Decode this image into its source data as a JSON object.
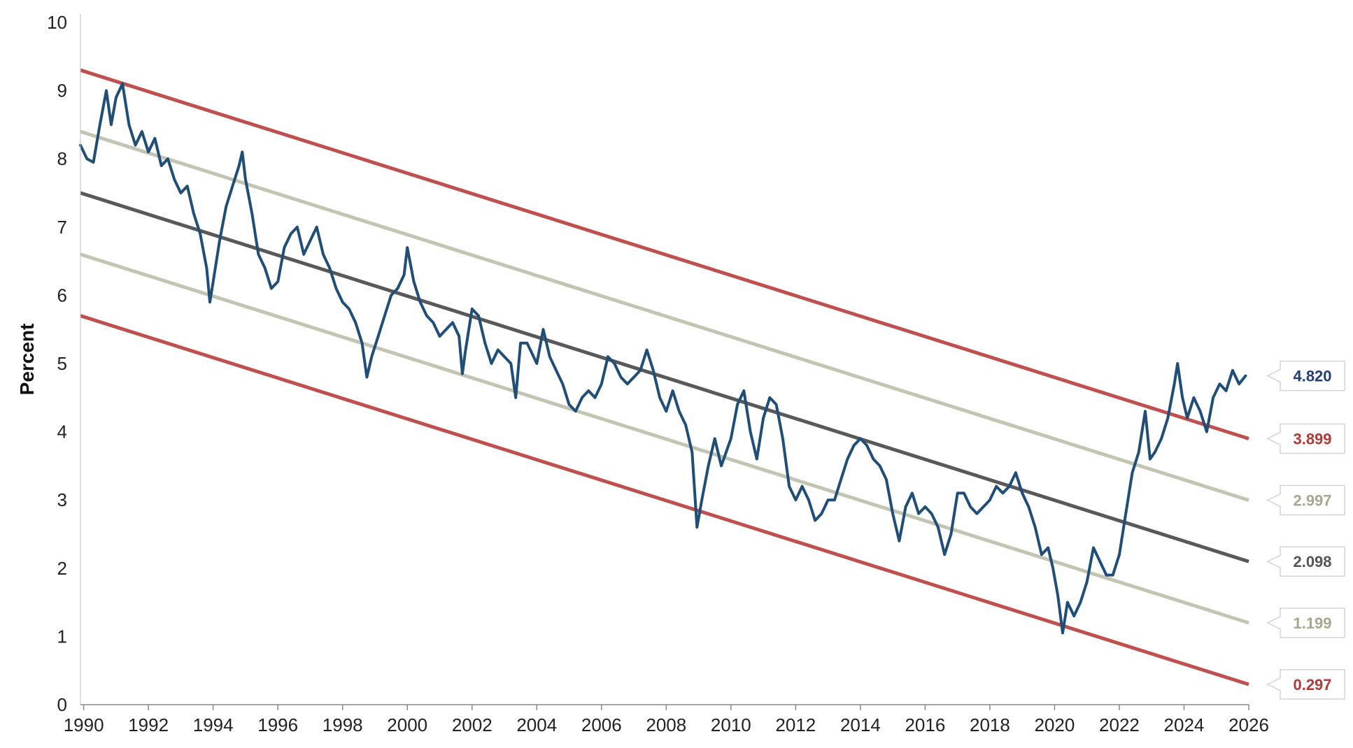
{
  "chart_data": {
    "type": "line",
    "title": "",
    "xlabel": "",
    "ylabel": "Percent",
    "xlim": [
      1989.9,
      2026.0
    ],
    "ylim": [
      0,
      10
    ],
    "x_ticks": [
      "1990",
      "1992",
      "1994",
      "1996",
      "1998",
      "2000",
      "2002",
      "2004",
      "2006",
      "2008",
      "2010",
      "2012",
      "2014",
      "2016",
      "2018",
      "2020",
      "2022",
      "2024",
      "2026"
    ],
    "y_ticks": [
      "0",
      "1",
      "2",
      "3",
      "4",
      "5",
      "6",
      "7",
      "8",
      "9",
      "10"
    ],
    "grid": false,
    "legend": "none",
    "series": [
      {
        "color": "#1f4e79",
        "points": [
          [
            1989.9,
            8.2
          ],
          [
            1990.1,
            8.0
          ],
          [
            1990.3,
            7.95
          ],
          [
            1990.5,
            8.5
          ],
          [
            1990.7,
            9.0
          ],
          [
            1990.85,
            8.5
          ],
          [
            1991.0,
            8.9
          ],
          [
            1991.2,
            9.1
          ],
          [
            1991.4,
            8.5
          ],
          [
            1991.6,
            8.2
          ],
          [
            1991.8,
            8.4
          ],
          [
            1992.0,
            8.1
          ],
          [
            1992.2,
            8.3
          ],
          [
            1992.4,
            7.9
          ],
          [
            1992.6,
            8.0
          ],
          [
            1992.8,
            7.7
          ],
          [
            1993.0,
            7.5
          ],
          [
            1993.2,
            7.6
          ],
          [
            1993.4,
            7.2
          ],
          [
            1993.6,
            6.9
          ],
          [
            1993.8,
            6.4
          ],
          [
            1993.9,
            5.9
          ],
          [
            1994.0,
            6.2
          ],
          [
            1994.2,
            6.8
          ],
          [
            1994.4,
            7.3
          ],
          [
            1994.6,
            7.6
          ],
          [
            1994.8,
            7.9
          ],
          [
            1994.9,
            8.1
          ],
          [
            1995.0,
            7.7
          ],
          [
            1995.2,
            7.2
          ],
          [
            1995.4,
            6.6
          ],
          [
            1995.6,
            6.4
          ],
          [
            1995.8,
            6.1
          ],
          [
            1996.0,
            6.2
          ],
          [
            1996.2,
            6.7
          ],
          [
            1996.4,
            6.9
          ],
          [
            1996.6,
            7.0
          ],
          [
            1996.8,
            6.6
          ],
          [
            1997.0,
            6.8
          ],
          [
            1997.2,
            7.0
          ],
          [
            1997.4,
            6.6
          ],
          [
            1997.6,
            6.4
          ],
          [
            1997.8,
            6.1
          ],
          [
            1998.0,
            5.9
          ],
          [
            1998.2,
            5.8
          ],
          [
            1998.4,
            5.6
          ],
          [
            1998.6,
            5.3
          ],
          [
            1998.75,
            4.8
          ],
          [
            1998.9,
            5.1
          ],
          [
            1999.1,
            5.4
          ],
          [
            1999.3,
            5.7
          ],
          [
            1999.5,
            6.0
          ],
          [
            1999.7,
            6.1
          ],
          [
            1999.9,
            6.3
          ],
          [
            2000.0,
            6.7
          ],
          [
            2000.2,
            6.2
          ],
          [
            2000.4,
            5.9
          ],
          [
            2000.6,
            5.7
          ],
          [
            2000.8,
            5.6
          ],
          [
            2001.0,
            5.4
          ],
          [
            2001.2,
            5.5
          ],
          [
            2001.4,
            5.6
          ],
          [
            2001.6,
            5.4
          ],
          [
            2001.7,
            4.85
          ],
          [
            2001.8,
            5.2
          ],
          [
            2002.0,
            5.8
          ],
          [
            2002.2,
            5.7
          ],
          [
            2002.4,
            5.3
          ],
          [
            2002.6,
            5.0
          ],
          [
            2002.8,
            5.2
          ],
          [
            2003.0,
            5.1
          ],
          [
            2003.2,
            5.0
          ],
          [
            2003.35,
            4.5
          ],
          [
            2003.5,
            5.3
          ],
          [
            2003.7,
            5.3
          ],
          [
            2004.0,
            5.0
          ],
          [
            2004.2,
            5.5
          ],
          [
            2004.4,
            5.1
          ],
          [
            2004.6,
            4.9
          ],
          [
            2004.8,
            4.7
          ],
          [
            2005.0,
            4.4
          ],
          [
            2005.2,
            4.3
          ],
          [
            2005.4,
            4.5
          ],
          [
            2005.6,
            4.6
          ],
          [
            2005.8,
            4.5
          ],
          [
            2006.0,
            4.7
          ],
          [
            2006.2,
            5.1
          ],
          [
            2006.4,
            5.0
          ],
          [
            2006.6,
            4.8
          ],
          [
            2006.8,
            4.7
          ],
          [
            2007.0,
            4.8
          ],
          [
            2007.2,
            4.9
          ],
          [
            2007.4,
            5.2
          ],
          [
            2007.6,
            4.9
          ],
          [
            2007.8,
            4.5
          ],
          [
            2008.0,
            4.3
          ],
          [
            2008.2,
            4.6
          ],
          [
            2008.4,
            4.3
          ],
          [
            2008.6,
            4.1
          ],
          [
            2008.8,
            3.7
          ],
          [
            2008.95,
            2.6
          ],
          [
            2009.1,
            3.0
          ],
          [
            2009.3,
            3.5
          ],
          [
            2009.5,
            3.9
          ],
          [
            2009.7,
            3.5
          ],
          [
            2010.0,
            3.9
          ],
          [
            2010.2,
            4.4
          ],
          [
            2010.4,
            4.6
          ],
          [
            2010.6,
            4.0
          ],
          [
            2010.8,
            3.6
          ],
          [
            2011.0,
            4.2
          ],
          [
            2011.2,
            4.5
          ],
          [
            2011.4,
            4.4
          ],
          [
            2011.6,
            3.9
          ],
          [
            2011.8,
            3.2
          ],
          [
            2012.0,
            3.0
          ],
          [
            2012.2,
            3.2
          ],
          [
            2012.4,
            3.0
          ],
          [
            2012.6,
            2.7
          ],
          [
            2012.8,
            2.8
          ],
          [
            2013.0,
            3.0
          ],
          [
            2013.2,
            3.0
          ],
          [
            2013.4,
            3.3
          ],
          [
            2013.6,
            3.6
          ],
          [
            2013.8,
            3.8
          ],
          [
            2014.0,
            3.9
          ],
          [
            2014.2,
            3.8
          ],
          [
            2014.4,
            3.6
          ],
          [
            2014.6,
            3.5
          ],
          [
            2014.8,
            3.3
          ],
          [
            2015.0,
            2.8
          ],
          [
            2015.2,
            2.4
          ],
          [
            2015.4,
            2.9
          ],
          [
            2015.6,
            3.1
          ],
          [
            2015.8,
            2.8
          ],
          [
            2016.0,
            2.9
          ],
          [
            2016.2,
            2.8
          ],
          [
            2016.4,
            2.6
          ],
          [
            2016.6,
            2.2
          ],
          [
            2016.8,
            2.5
          ],
          [
            2017.0,
            3.1
          ],
          [
            2017.2,
            3.1
          ],
          [
            2017.4,
            2.9
          ],
          [
            2017.6,
            2.8
          ],
          [
            2017.8,
            2.9
          ],
          [
            2018.0,
            3.0
          ],
          [
            2018.2,
            3.2
          ],
          [
            2018.4,
            3.1
          ],
          [
            2018.6,
            3.2
          ],
          [
            2018.8,
            3.4
          ],
          [
            2019.0,
            3.1
          ],
          [
            2019.2,
            2.9
          ],
          [
            2019.4,
            2.6
          ],
          [
            2019.6,
            2.2
          ],
          [
            2019.8,
            2.3
          ],
          [
            2019.95,
            2.0
          ],
          [
            2020.1,
            1.6
          ],
          [
            2020.25,
            1.05
          ],
          [
            2020.4,
            1.5
          ],
          [
            2020.6,
            1.3
          ],
          [
            2020.8,
            1.5
          ],
          [
            2021.0,
            1.8
          ],
          [
            2021.2,
            2.3
          ],
          [
            2021.4,
            2.1
          ],
          [
            2021.6,
            1.9
          ],
          [
            2021.8,
            1.9
          ],
          [
            2022.0,
            2.2
          ],
          [
            2022.2,
            2.8
          ],
          [
            2022.4,
            3.4
          ],
          [
            2022.6,
            3.7
          ],
          [
            2022.8,
            4.3
          ],
          [
            2022.95,
            3.6
          ],
          [
            2023.1,
            3.7
          ],
          [
            2023.3,
            3.9
          ],
          [
            2023.5,
            4.2
          ],
          [
            2023.7,
            4.7
          ],
          [
            2023.8,
            5.0
          ],
          [
            2023.95,
            4.5
          ],
          [
            2024.1,
            4.2
          ],
          [
            2024.3,
            4.5
          ],
          [
            2024.5,
            4.3
          ],
          [
            2024.7,
            4.0
          ],
          [
            2024.9,
            4.5
          ],
          [
            2025.1,
            4.7
          ],
          [
            2025.3,
            4.6
          ],
          [
            2025.5,
            4.9
          ],
          [
            2025.7,
            4.7
          ],
          [
            2025.9,
            4.82
          ]
        ]
      }
    ],
    "trend_lines": [
      {
        "color": "#c0504d",
        "start": [
          1989.9,
          9.3
        ],
        "end": [
          2026.0,
          3.899
        ]
      },
      {
        "color": "#c4c4b2",
        "start": [
          1989.9,
          8.4
        ],
        "end": [
          2026.0,
          2.997
        ]
      },
      {
        "color": "#595959",
        "start": [
          1989.9,
          7.5
        ],
        "end": [
          2026.0,
          2.098
        ]
      },
      {
        "color": "#c4c4b2",
        "start": [
          1989.9,
          6.6
        ],
        "end": [
          2026.0,
          1.199
        ]
      },
      {
        "color": "#c0504d",
        "start": [
          1989.9,
          5.7
        ],
        "end": [
          2026.0,
          0.297
        ]
      }
    ],
    "end_labels": [
      {
        "text": "4.820",
        "value": 4.82,
        "color": "#1f3f7a"
      },
      {
        "text": "3.899",
        "value": 3.899,
        "color": "#b03a36"
      },
      {
        "text": "2.997",
        "value": 2.997,
        "color": "#a8a890"
      },
      {
        "text": "2.098",
        "value": 2.098,
        "color": "#555555"
      },
      {
        "text": "1.199",
        "value": 1.199,
        "color": "#a8a890"
      },
      {
        "text": "0.297",
        "value": 0.297,
        "color": "#b03a36"
      }
    ]
  }
}
